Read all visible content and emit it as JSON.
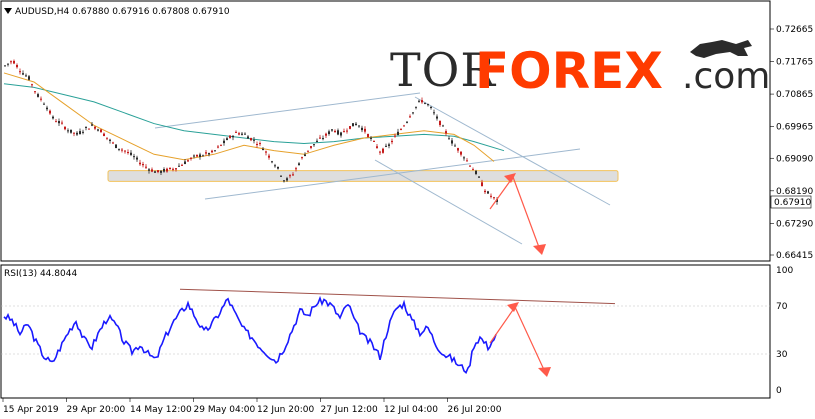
{
  "chart_data": [
    {
      "type": "candlestick",
      "symbol_line": "AUDUSD,H4  0.67880 0.67916 0.67808 0.67910",
      "current_price_label": "0.67910",
      "y_ticks": [
        "0.72665",
        "0.71765",
        "0.70865",
        "0.69965",
        "0.69090",
        "0.68190",
        "0.67290",
        "0.66415"
      ],
      "ylim": [
        0.66415,
        0.72665
      ],
      "x_tick_labels": [
        "15 Apr 2019",
        "29 Apr 20:00",
        "14 May 12:00",
        "29 May 04:00",
        "12 Jun 20:00",
        "27 Jun 12:00",
        "12 Jul 04:00",
        "26 Jul 20:00"
      ],
      "close_path": [
        [
          0,
          0.7165
        ],
        [
          8,
          0.718
        ],
        [
          16,
          0.715
        ],
        [
          24,
          0.713
        ],
        [
          32,
          0.7085
        ],
        [
          40,
          0.706
        ],
        [
          48,
          0.702
        ],
        [
          56,
          0.7005
        ],
        [
          64,
          0.6985
        ],
        [
          72,
          0.6975
        ],
        [
          80,
          0.699
        ],
        [
          88,
          0.7
        ],
        [
          96,
          0.6985
        ],
        [
          104,
          0.696
        ],
        [
          112,
          0.694
        ],
        [
          120,
          0.693
        ],
        [
          128,
          0.6915
        ],
        [
          136,
          0.6895
        ],
        [
          144,
          0.688
        ],
        [
          152,
          0.687
        ],
        [
          160,
          0.6875
        ],
        [
          168,
          0.688
        ],
        [
          176,
          0.689
        ],
        [
          184,
          0.6905
        ],
        [
          192,
          0.6915
        ],
        [
          200,
          0.692
        ],
        [
          208,
          0.6925
        ],
        [
          216,
          0.6945
        ],
        [
          224,
          0.6965
        ],
        [
          232,
          0.698
        ],
        [
          240,
          0.6975
        ],
        [
          248,
          0.696
        ],
        [
          256,
          0.6945
        ],
        [
          264,
          0.6915
        ],
        [
          272,
          0.6885
        ],
        [
          280,
          0.6845
        ],
        [
          288,
          0.6865
        ],
        [
          296,
          0.6905
        ],
        [
          304,
          0.6935
        ],
        [
          312,
          0.6955
        ],
        [
          320,
          0.697
        ],
        [
          328,
          0.699
        ],
        [
          336,
          0.6975
        ],
        [
          344,
          0.6995
        ],
        [
          352,
          0.7005
        ],
        [
          360,
          0.6985
        ],
        [
          368,
          0.6955
        ],
        [
          376,
          0.6925
        ],
        [
          384,
          0.6945
        ],
        [
          392,
          0.6975
        ],
        [
          400,
          0.7005
        ],
        [
          408,
          0.704
        ],
        [
          416,
          0.707
        ],
        [
          424,
          0.7055
        ],
        [
          432,
          0.702
        ],
        [
          440,
          0.6985
        ],
        [
          448,
          0.695
        ],
        [
          456,
          0.6925
        ],
        [
          464,
          0.6895
        ],
        [
          472,
          0.6865
        ],
        [
          480,
          0.682
        ],
        [
          488,
          0.68
        ],
        [
          492,
          0.6791
        ]
      ],
      "ma_fast": [
        [
          0,
          0.7145
        ],
        [
          30,
          0.712
        ],
        [
          60,
          0.706
        ],
        [
          90,
          0.7
        ],
        [
          120,
          0.696
        ],
        [
          150,
          0.692
        ],
        [
          180,
          0.6905
        ],
        [
          210,
          0.692
        ],
        [
          240,
          0.6945
        ],
        [
          270,
          0.693
        ],
        [
          300,
          0.692
        ],
        [
          330,
          0.6945
        ],
        [
          360,
          0.6965
        ],
        [
          390,
          0.6975
        ],
        [
          420,
          0.6985
        ],
        [
          450,
          0.6975
        ],
        [
          470,
          0.6945
        ],
        [
          490,
          0.69
        ]
      ],
      "ma_slow": [
        [
          0,
          0.7115
        ],
        [
          30,
          0.7105
        ],
        [
          60,
          0.7085
        ],
        [
          90,
          0.7065
        ],
        [
          120,
          0.7035
        ],
        [
          150,
          0.7005
        ],
        [
          180,
          0.6985
        ],
        [
          210,
          0.6975
        ],
        [
          240,
          0.6965
        ],
        [
          270,
          0.6955
        ],
        [
          300,
          0.695
        ],
        [
          330,
          0.6955
        ],
        [
          360,
          0.6965
        ],
        [
          390,
          0.697
        ],
        [
          420,
          0.6975
        ],
        [
          450,
          0.697
        ],
        [
          470,
          0.6955
        ],
        [
          500,
          0.693
        ]
      ],
      "support_zone": [
        0.6845,
        0.6875
      ],
      "colors": {
        "up": "#2b2b2b",
        "down": "#c41a1a",
        "ma_fast": "#e6a12b",
        "ma_slow": "#2aa198",
        "channel": "#9fb8cf",
        "arrow": "#ff5a4a",
        "zone": "#d8d8d8",
        "zone_border": "#f2c35c"
      }
    },
    {
      "type": "line",
      "indicator_line": "RSI(13) 44.8044",
      "y_ticks": [
        "100",
        "70",
        "30",
        "0"
      ],
      "ylim": [
        0,
        100
      ],
      "values_path": [
        [
          0,
          62
        ],
        [
          8,
          58
        ],
        [
          16,
          47
        ],
        [
          24,
          55
        ],
        [
          32,
          40
        ],
        [
          40,
          28
        ],
        [
          48,
          22
        ],
        [
          56,
          35
        ],
        [
          64,
          48
        ],
        [
          72,
          58
        ],
        [
          80,
          42
        ],
        [
          88,
          36
        ],
        [
          96,
          50
        ],
        [
          104,
          61
        ],
        [
          112,
          54
        ],
        [
          120,
          40
        ],
        [
          128,
          32
        ],
        [
          136,
          38
        ],
        [
          144,
          30
        ],
        [
          152,
          25
        ],
        [
          160,
          42
        ],
        [
          168,
          55
        ],
        [
          176,
          64
        ],
        [
          184,
          72
        ],
        [
          192,
          60
        ],
        [
          200,
          48
        ],
        [
          208,
          55
        ],
        [
          216,
          65
        ],
        [
          224,
          76
        ],
        [
          232,
          62
        ],
        [
          240,
          50
        ],
        [
          248,
          44
        ],
        [
          256,
          36
        ],
        [
          264,
          30
        ],
        [
          272,
          24
        ],
        [
          280,
          35
        ],
        [
          288,
          50
        ],
        [
          296,
          66
        ],
        [
          304,
          62
        ],
        [
          312,
          72
        ],
        [
          320,
          75
        ],
        [
          328,
          70
        ],
        [
          336,
          60
        ],
        [
          344,
          72
        ],
        [
          352,
          55
        ],
        [
          360,
          44
        ],
        [
          368,
          38
        ],
        [
          376,
          28
        ],
        [
          384,
          52
        ],
        [
          392,
          68
        ],
        [
          400,
          72
        ],
        [
          408,
          58
        ],
        [
          416,
          48
        ],
        [
          424,
          52
        ],
        [
          432,
          38
        ],
        [
          440,
          30
        ],
        [
          448,
          26
        ],
        [
          456,
          20
        ],
        [
          464,
          16
        ],
        [
          470,
          38
        ],
        [
          476,
          44
        ],
        [
          484,
          36
        ],
        [
          492,
          45
        ]
      ],
      "trendline_from": [
        180,
        84
      ],
      "trendline_to": [
        615,
        72
      ],
      "colors": {
        "line": "#1a1aff",
        "trend": "#a0524a",
        "arrow": "#ff5a4a"
      }
    }
  ],
  "logo": {
    "part1": "TOR",
    "part2": "FOREX",
    "part3": ".com"
  }
}
